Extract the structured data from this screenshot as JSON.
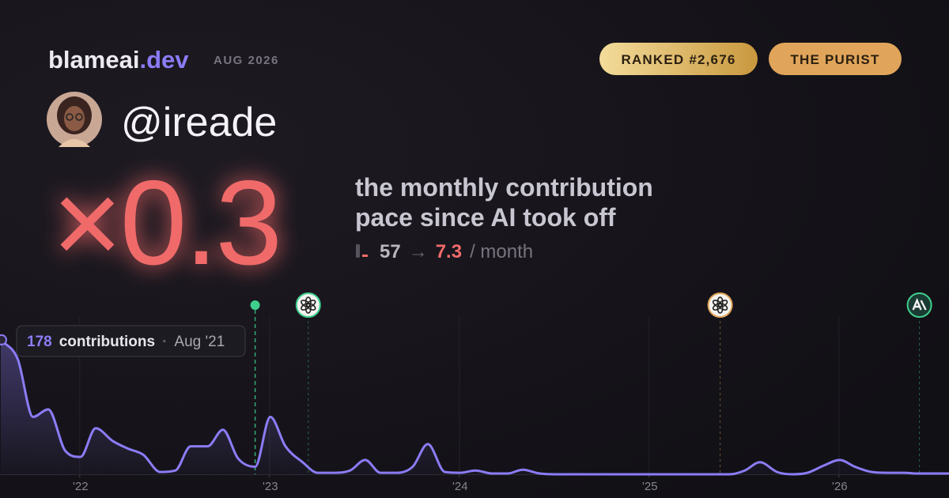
{
  "brand": {
    "name": "blameai",
    "tld": ".dev"
  },
  "period": "AUG 2026",
  "badges": [
    "RANKED #2,676",
    "THE PURIST"
  ],
  "handle": "@ireade",
  "multiplier": "×0.3",
  "description": [
    "the monthly contribution",
    "pace since AI took off"
  ],
  "pace": {
    "before": "57",
    "arrow": "→",
    "after": "7.3",
    "unit": "/ month"
  },
  "chart_data": {
    "type": "line",
    "color": "#8b7cf6",
    "x": [
      2021.58,
      2021.67,
      2021.75,
      2021.83,
      2021.92,
      2022.0,
      2022.08,
      2022.17,
      2022.25,
      2022.33,
      2022.42,
      2022.5,
      2022.58,
      2022.67,
      2022.75,
      2022.83,
      2022.92,
      2023.0,
      2023.08,
      2023.17,
      2023.25,
      2023.33,
      2023.42,
      2023.5,
      2023.58,
      2023.67,
      2023.75,
      2023.83,
      2023.92,
      2024.0,
      2024.08,
      2024.17,
      2024.25,
      2024.33,
      2024.42,
      2024.5,
      2024.58,
      2024.67,
      2024.75,
      2024.83,
      2024.92,
      2025.0,
      2025.08,
      2025.17,
      2025.25,
      2025.33,
      2025.42,
      2025.5,
      2025.58,
      2025.67,
      2025.75,
      2025.83,
      2025.92,
      2026.0,
      2026.08,
      2026.17,
      2026.25,
      2026.33,
      2026.42,
      2026.5,
      2026.58
    ],
    "values": [
      178,
      152,
      76,
      86,
      31,
      23,
      61,
      44,
      34,
      26,
      3,
      5,
      37,
      37,
      59,
      21,
      10,
      76,
      37,
      16,
      2,
      2,
      5,
      19,
      2,
      2,
      10,
      40,
      3,
      2,
      5,
      1,
      1,
      6,
      1,
      0,
      0,
      0,
      0,
      0,
      0,
      0,
      0,
      0,
      0,
      0,
      0,
      5,
      16,
      3,
      0,
      2,
      12,
      19,
      10,
      3,
      2,
      2,
      1,
      1,
      1
    ],
    "xlim": [
      2021.58,
      2026.58
    ],
    "ylim": [
      0,
      180
    ],
    "xticks": [
      {
        "value": 2022,
        "label": "'22"
      },
      {
        "value": 2023,
        "label": "'23"
      },
      {
        "value": 2024,
        "label": "'24"
      },
      {
        "value": 2025,
        "label": "'25"
      },
      {
        "value": 2026,
        "label": "'26"
      }
    ],
    "grid": true,
    "tooltip": {
      "label": "contributions",
      "date": "Aug '21"
    },
    "events": [
      {
        "x": 2022.92,
        "color": "#3ecf8e",
        "icon": "dot"
      },
      {
        "x": 2023.2,
        "color": "#3ecf8e",
        "icon": "openai"
      },
      {
        "x": 2025.37,
        "color": "#e0a55a",
        "icon": "openai"
      },
      {
        "x": 2026.42,
        "color": "#3ecf8e",
        "icon": "anthropic"
      }
    ]
  }
}
